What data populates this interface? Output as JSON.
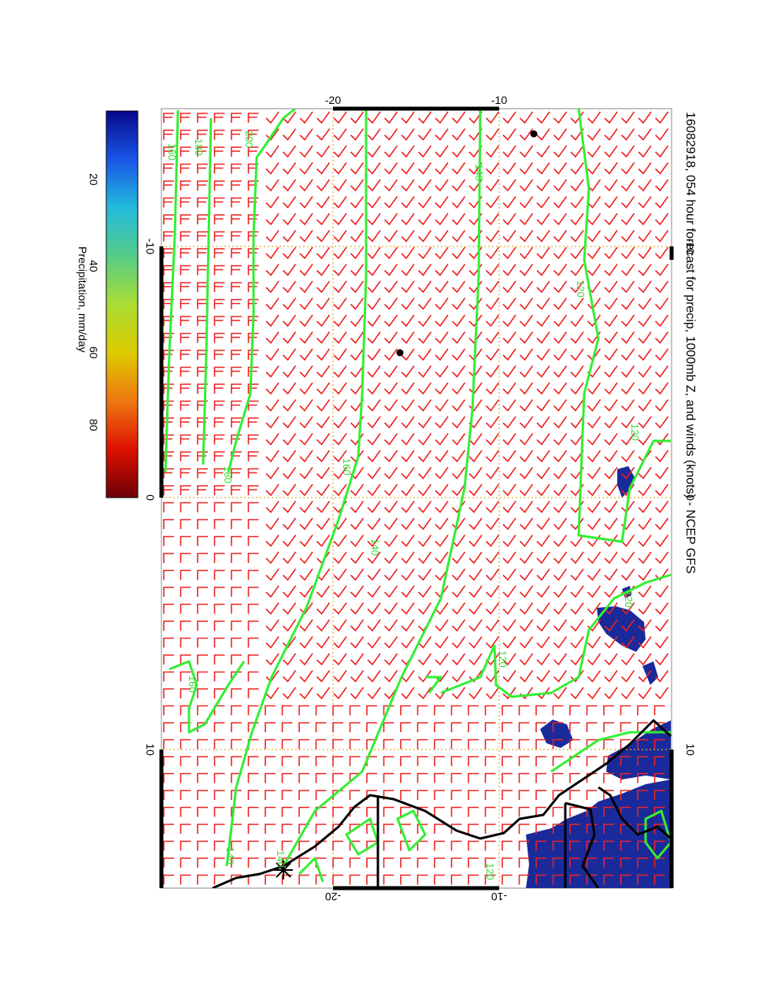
{
  "title": "16082918, 054 hour forecast for precip, 1000mb Z, and winds (knots) - NCEP GFS",
  "map": {
    "x_ticks_top": [
      "-20",
      "-10"
    ],
    "x_ticks_bottom": [
      "-20",
      "-10"
    ],
    "y_ticks_left": [
      "-10",
      "0",
      "10"
    ],
    "y_ticks_right": [
      "-10",
      "0",
      "10"
    ],
    "contour_labels": [
      "200",
      "180",
      "160",
      "140",
      "120",
      "120",
      "160",
      "140",
      "120",
      "180",
      "120",
      "160",
      "140",
      "140",
      "120"
    ],
    "colors": {
      "contour": "#33ee33",
      "wind_barb": "#ee2222",
      "coastline": "#000000",
      "grid": "#ddaa33",
      "precip": "#1a2a9a"
    }
  },
  "colorbar": {
    "title": "Precipitation, mm/day",
    "tick_labels": [
      "20",
      "40",
      "60",
      "80"
    ],
    "colors": [
      "#08088c",
      "#1a55e6",
      "#22bbdd",
      "#55cc88",
      "#aadd33",
      "#ddcc00",
      "#ee7711",
      "#dd1100",
      "#6e0008"
    ]
  }
}
